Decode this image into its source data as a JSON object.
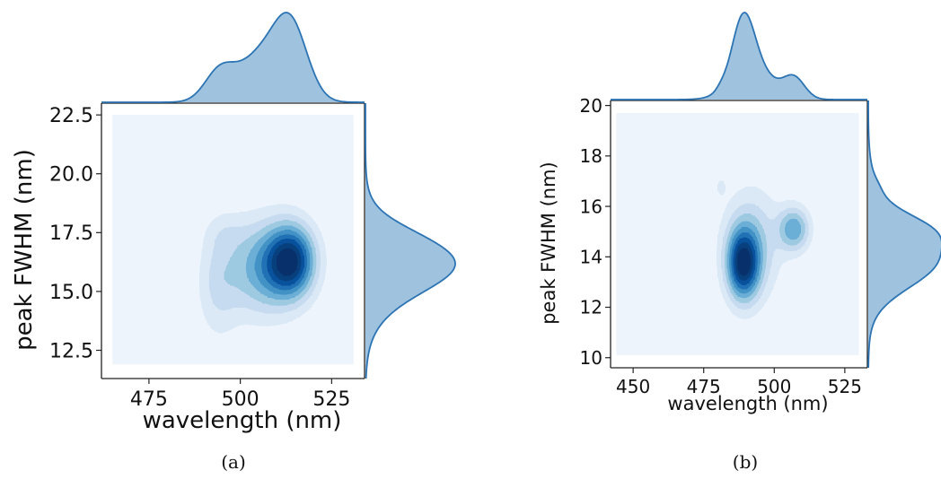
{
  "chart_data": [
    {
      "type": "jointplot-kde",
      "caption": "(a)",
      "xlabel": "wavelength (nm)",
      "ylabel": "peak FWHM (nm)",
      "xlim": [
        462,
        534
      ],
      "ylim": [
        11.3,
        23.0
      ],
      "xticks": [
        475,
        500,
        525
      ],
      "yticks": [
        12.5,
        15.0,
        17.5,
        20.0,
        22.5
      ],
      "tick_labels_x": [
        "475",
        "500",
        "525"
      ],
      "tick_labels_y": [
        "12.5",
        "15.0",
        "17.5",
        "20.0",
        "22.5"
      ],
      "background_extent": {
        "x": [
          465,
          531
        ],
        "y": [
          11.9,
          22.5
        ]
      },
      "kde_components": [
        {
          "x": 514,
          "y": 16.3,
          "sx": 4.5,
          "sy": 1.05,
          "w": 1.0
        },
        {
          "x": 506,
          "y": 16.0,
          "sx": 6.5,
          "sy": 1.4,
          "w": 0.55
        },
        {
          "x": 494,
          "y": 15.3,
          "sx": 4.0,
          "sy": 1.6,
          "w": 0.25
        },
        {
          "x": 496,
          "y": 17.5,
          "sx": 4.0,
          "sy": 0.6,
          "w": 0.1
        }
      ],
      "levels": 9,
      "marginal_x_range": [
        462,
        534
      ],
      "marginal_y_range": [
        11.3,
        23.0
      ],
      "colors": {
        "fill": "#9fc3df",
        "line": "#2c74b4",
        "bg": "#edf4fc"
      }
    },
    {
      "type": "jointplot-kde",
      "caption": "(b)",
      "xlabel": "wavelength (nm)",
      "ylabel": "peak FWHM (nm)",
      "xlim": [
        442,
        533
      ],
      "ylim": [
        9.6,
        20.2
      ],
      "xticks": [
        450,
        475,
        500,
        525
      ],
      "yticks": [
        10,
        12,
        14,
        16,
        18,
        20
      ],
      "tick_labels_x": [
        "450",
        "475",
        "500",
        "525"
      ],
      "tick_labels_y": [
        "10",
        "12",
        "14",
        "16",
        "18",
        "20"
      ],
      "background_extent": {
        "x": [
          444,
          530
        ],
        "y": [
          10.1,
          19.7
        ]
      },
      "kde_components": [
        {
          "x": 489,
          "y": 13.7,
          "sx": 3.8,
          "sy": 0.95,
          "w": 1.0
        },
        {
          "x": 507,
          "y": 15.1,
          "sx": 3.8,
          "sy": 0.6,
          "w": 0.6
        },
        {
          "x": 492,
          "y": 14.5,
          "sx": 7.0,
          "sy": 1.5,
          "w": 0.4
        },
        {
          "x": 481,
          "y": 16.8,
          "sx": 1.6,
          "sy": 0.35,
          "w": 0.12
        }
      ],
      "levels": 9,
      "marginal_x_range": [
        442,
        533
      ],
      "marginal_y_range": [
        9.6,
        20.2
      ],
      "colors": {
        "fill": "#9fc3df",
        "line": "#2c74b4",
        "bg": "#edf4fc"
      }
    }
  ]
}
